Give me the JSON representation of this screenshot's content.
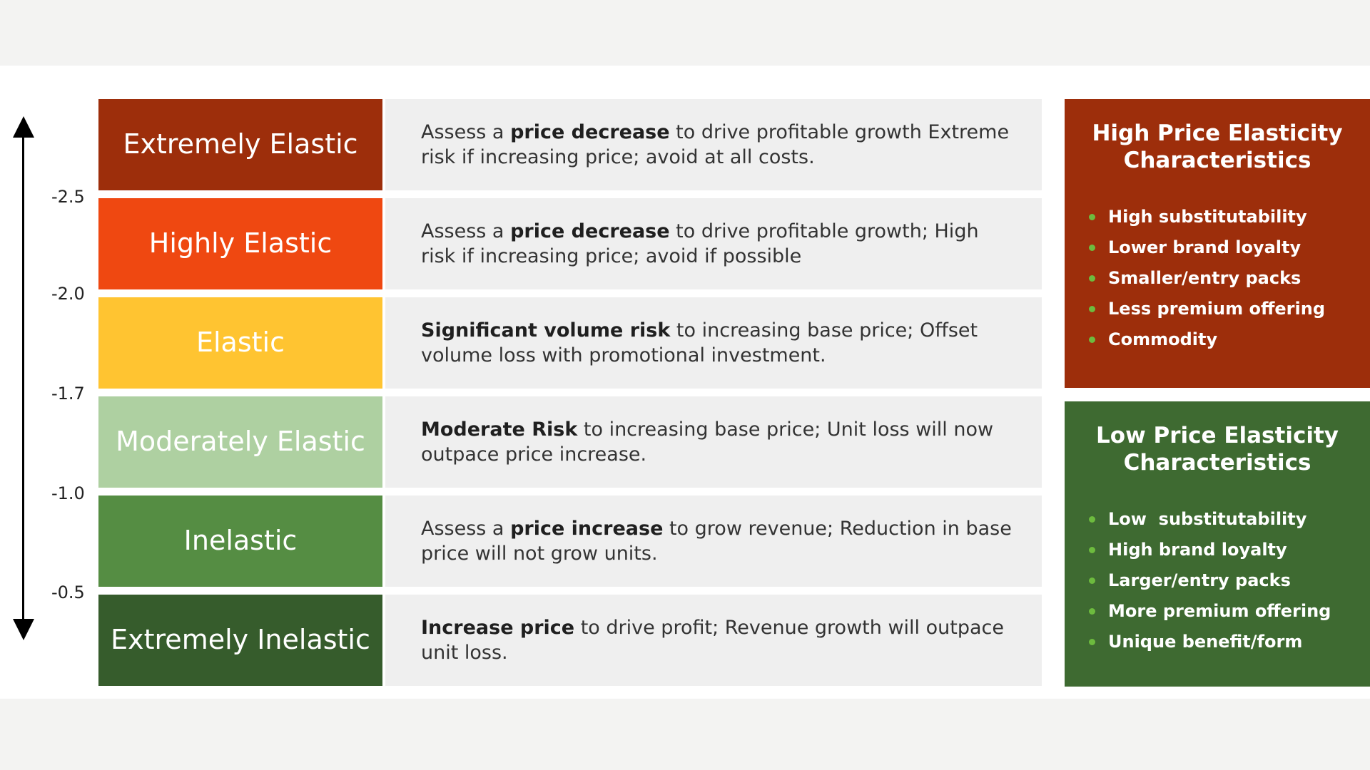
{
  "axis": {
    "ticks": [
      "-2.5",
      "-2.0",
      "-1.7",
      "-1.0",
      "-0.5"
    ]
  },
  "rows": [
    {
      "label": "Extremely Elastic",
      "color": "#9d2e0b",
      "desc_pre": "Assess a ",
      "desc_bold": "price decrease",
      "desc_post": " to drive profitable growth Extreme risk if increasing price; avoid at all costs."
    },
    {
      "label": "Highly Elastic",
      "color": "#ef4811",
      "desc_pre": "Assess a ",
      "desc_bold": "price decrease",
      "desc_post": " to drive profitable growth; High risk if increasing price; avoid if possible"
    },
    {
      "label": "Elastic",
      "color": "#ffc431",
      "desc_pre": "",
      "desc_bold": "Significant volume risk",
      "desc_post": " to increasing base price; Offset volume loss with promotional investment."
    },
    {
      "label": "Moderately Elastic",
      "color": "#aed0a1",
      "desc_pre": "",
      "desc_bold": "Moderate Risk",
      "desc_post": " to increasing base price; Unit loss will now outpace price increase."
    },
    {
      "label": "Inelastic",
      "color": "#558d43",
      "desc_pre": "Assess a ",
      "desc_bold": "price increase",
      "desc_post": " to grow revenue; Reduction in base price will not grow units."
    },
    {
      "label": "Extremely Inelastic",
      "color": "#365c2c",
      "desc_pre": "",
      "desc_bold": "Increase price",
      "desc_post": " to drive profit; Revenue growth will outpace unit loss."
    }
  ],
  "high_panel": {
    "title": "High Price Elasticity Characteristics",
    "color": "#9d2e0b",
    "items": [
      "High substitutability",
      "Lower brand loyalty",
      "Smaller/entry packs",
      "Less premium offering",
      "Commodity"
    ]
  },
  "low_panel": {
    "title": "Low Price Elasticity Characteristics",
    "color": "#3e6a31",
    "items": [
      "Low  substitutability",
      "High brand loyalty",
      "Larger/entry packs",
      "More premium offering",
      "Unique benefit/form"
    ]
  }
}
